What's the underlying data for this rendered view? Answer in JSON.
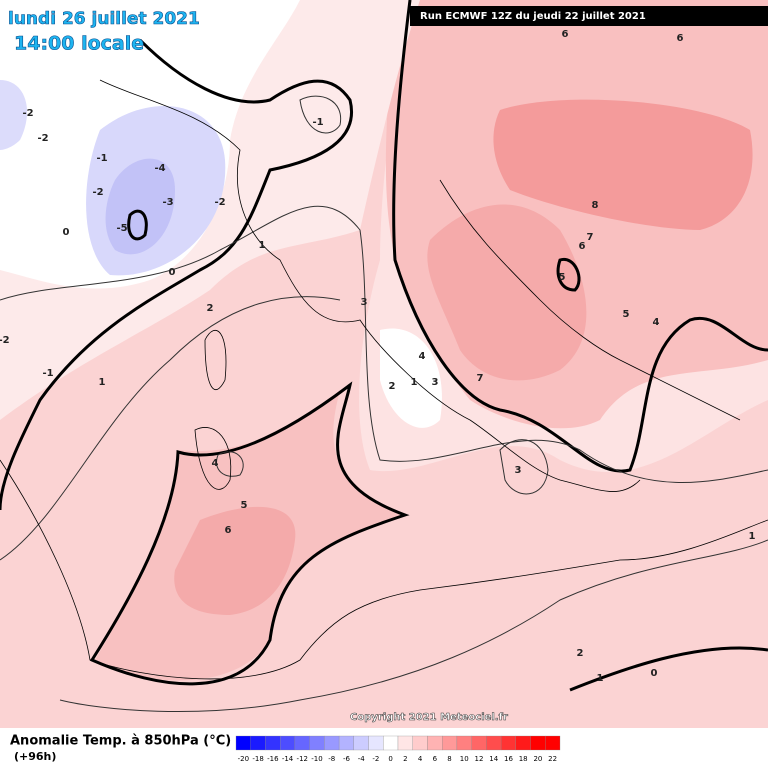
{
  "header": {
    "date": "lundi 26 juillet 2021",
    "time": "14:00 locale",
    "run": "Run ECMWF 12Z du jeudi 22 juillet 2021"
  },
  "copyright": "Copyright 2021 Meteociel.fr",
  "legend": {
    "title": "Anomalie Temp. à 850hPa (°C)",
    "horizon": "(+96h)",
    "ticks": [
      -20,
      -18,
      -16,
      -14,
      -12,
      -10,
      -8,
      -6,
      -4,
      -2,
      0,
      2,
      4,
      6,
      8,
      10,
      12,
      14,
      16,
      18,
      20,
      22
    ],
    "colors": [
      "#0000ff",
      "#1a1aff",
      "#3333ff",
      "#4d4dff",
      "#6666ff",
      "#8080ff",
      "#9999ff",
      "#b3b3ff",
      "#ccccff",
      "#e6e6ff",
      "#ffffff",
      "#ffe6e6",
      "#ffcccc",
      "#ffb3b3",
      "#ff9999",
      "#ff8080",
      "#ff6666",
      "#ff4d4d",
      "#ff3333",
      "#ff1a1a",
      "#ff0000",
      "#ff0000"
    ]
  },
  "contour_labels": [
    -2,
    -2,
    -1,
    -2,
    -3,
    -4,
    -5,
    0,
    -2,
    -1,
    0,
    1,
    2,
    -1,
    1,
    -2,
    3,
    4,
    2,
    1,
    3,
    7,
    6,
    6,
    8,
    7,
    6,
    5,
    5,
    4,
    3,
    4,
    5,
    6,
    2,
    1,
    0,
    1
  ]
}
